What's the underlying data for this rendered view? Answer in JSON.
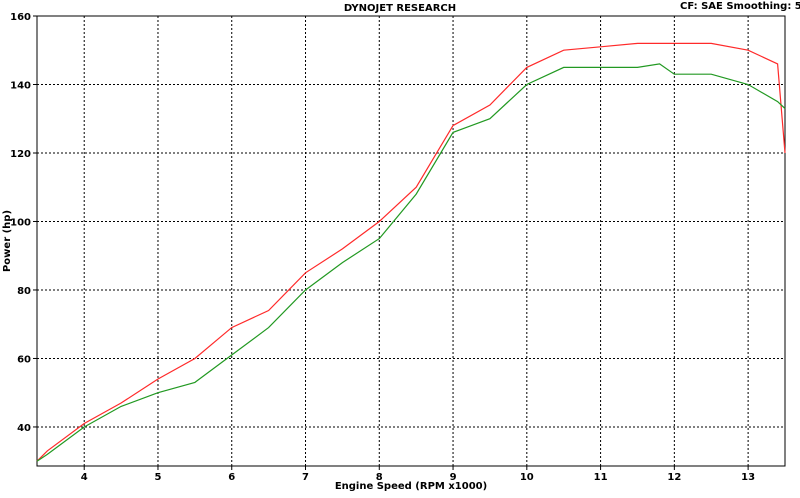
{
  "chart_data": {
    "type": "line",
    "title": "DYNOJET RESEARCH",
    "subtitle": "CF: SAE  Smoothing: 5",
    "x_label": "Engine Speed (RPM x1000)",
    "y_label": "Power (hp)",
    "xlim": [
      3.36,
      13.5
    ],
    "ylim": [
      28.6,
      160
    ],
    "xticks": [
      4,
      5,
      6,
      7,
      8,
      9,
      10,
      11,
      12,
      13
    ],
    "yticks": [
      40,
      60,
      80,
      100,
      120,
      140,
      160
    ],
    "grid": true,
    "x": [
      3.36,
      3.5,
      4,
      4.5,
      5,
      5.5,
      6,
      6.5,
      7,
      7.5,
      8,
      8.5,
      9,
      9.5,
      10,
      10.5,
      11,
      11.5,
      11.8,
      12,
      12.5,
      13,
      13.4,
      13.5
    ],
    "series": [
      {
        "color": "#ff2a2a",
        "values": [
          30,
          33,
          41,
          47,
          54,
          60,
          69,
          74,
          85,
          92,
          100,
          110,
          128,
          134,
          145,
          150,
          151,
          152,
          152,
          152,
          152,
          150,
          146,
          120
        ]
      },
      {
        "color": "#229922",
        "values": [
          30,
          32,
          40,
          46,
          50,
          53,
          61,
          69,
          80,
          88,
          95,
          108,
          126,
          130,
          140,
          145,
          145,
          145,
          146,
          143,
          143,
          140,
          135,
          133
        ]
      }
    ]
  }
}
